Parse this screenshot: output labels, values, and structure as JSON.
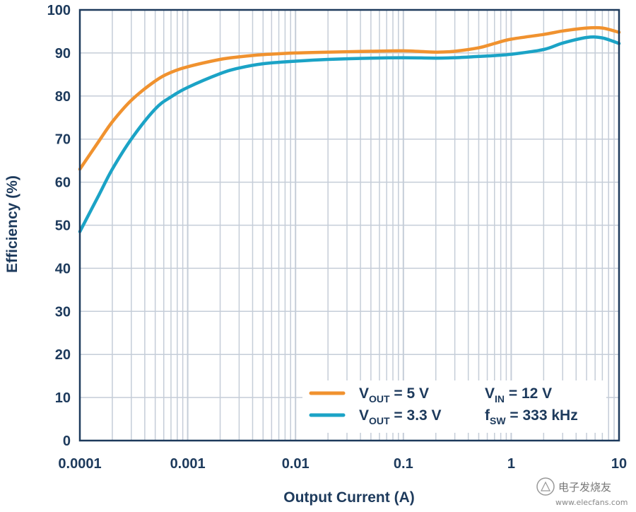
{
  "chart_data": {
    "type": "line",
    "title": "",
    "xlabel": "Output Current (A)",
    "ylabel": "Efficiency (%)",
    "xscale": "log",
    "xlim": [
      0.0001,
      10
    ],
    "ylim": [
      0,
      100
    ],
    "grid": true,
    "x_tick_labels": [
      "0.0001",
      "0.001",
      "0.01",
      "0.1",
      "1",
      "10"
    ],
    "x_tick_values": [
      0.0001,
      0.001,
      0.01,
      0.1,
      1,
      10
    ],
    "y_tick_labels": [
      "0",
      "10",
      "20",
      "30",
      "40",
      "50",
      "60",
      "70",
      "80",
      "90",
      "100"
    ],
    "y_tick_values": [
      0,
      10,
      20,
      30,
      40,
      50,
      60,
      70,
      80,
      90,
      100
    ],
    "series": [
      {
        "name": "VOUT = 5 V",
        "color": "#f0922f",
        "x": [
          0.0001,
          0.00015,
          0.0002,
          0.0003,
          0.0005,
          0.0007,
          0.001,
          0.002,
          0.003,
          0.005,
          0.01,
          0.02,
          0.05,
          0.1,
          0.2,
          0.3,
          0.5,
          0.7,
          1,
          2,
          3,
          5,
          7,
          10
        ],
        "values": [
          63,
          69.5,
          74,
          79,
          83.5,
          85.5,
          86.8,
          88.5,
          89.1,
          89.6,
          90,
          90.2,
          90.4,
          90.5,
          90.2,
          90.4,
          91.2,
          92.2,
          93.2,
          94.3,
          95.1,
          95.8,
          95.8,
          94.8
        ]
      },
      {
        "name": "VOUT = 3.3 V",
        "color": "#1ba3c6",
        "x": [
          0.0001,
          0.00015,
          0.0002,
          0.0003,
          0.0005,
          0.0007,
          0.001,
          0.002,
          0.003,
          0.005,
          0.01,
          0.02,
          0.05,
          0.1,
          0.2,
          0.3,
          0.5,
          0.7,
          1,
          2,
          3,
          5,
          7,
          10
        ],
        "values": [
          48.5,
          57,
          63,
          70,
          77,
          79.8,
          82,
          85.2,
          86.5,
          87.5,
          88.1,
          88.5,
          88.8,
          88.9,
          88.8,
          88.9,
          89.2,
          89.4,
          89.7,
          90.8,
          92.3,
          93.6,
          93.5,
          92.2
        ]
      }
    ],
    "legend": {
      "placement": "bottom-right",
      "entries": [
        {
          "label_main": "V",
          "label_sub": "OUT",
          "label_rest": " = 5 V",
          "color": "#f0922f"
        },
        {
          "label_main": "V",
          "label_sub": "OUT",
          "label_rest": " = 3.3 V",
          "color": "#1ba3c6"
        }
      ],
      "notes": [
        {
          "label_main": "V",
          "label_sub": "IN",
          "label_rest": " = 12 V"
        },
        {
          "label_main": "f",
          "label_sub": "SW",
          "label_rest": " = 333 kHz"
        }
      ]
    }
  },
  "watermark": {
    "text_cn": "电子发烧友",
    "url": "www.elecfans.com"
  },
  "colors": {
    "axis": "#1d3a5c",
    "grid": "#c5cdd8",
    "background": "#ffffff"
  }
}
